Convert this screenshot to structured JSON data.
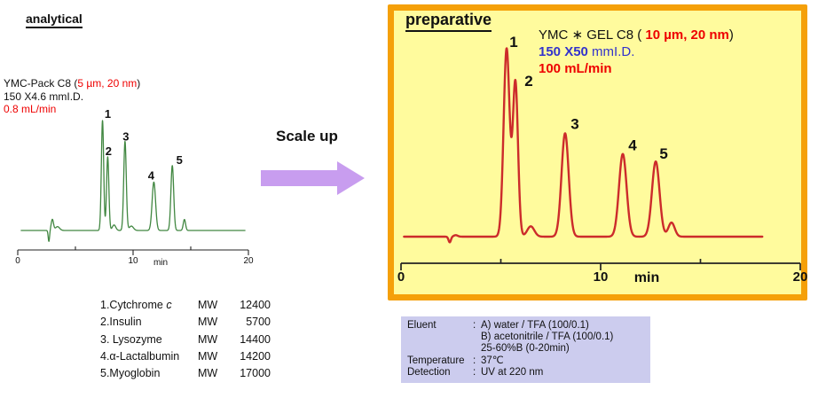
{
  "colors": {
    "panel_border": "#F5A009",
    "panel_bg": "#FFFB9D",
    "analytical_trace": "#418741",
    "preparative_trace": "#CC2B2B",
    "axis": "#222222",
    "arrow_fill": "#C89DEF",
    "red_text": "#EE0000",
    "blue_text": "#3333CC",
    "conditions_bg": "#CCCCEE"
  },
  "chart_data": [
    {
      "id": "analytical",
      "type": "line",
      "title": "analytical",
      "xlabel": "min",
      "xlim": [
        0,
        20
      ],
      "x_major_ticks": [
        0,
        10,
        20
      ],
      "x_minor_ticks": [
        5,
        15
      ],
      "grid": false,
      "trace_range": [
        0.3,
        19.7
      ],
      "line_color": "#418741",
      "peaks": [
        {
          "label": "1",
          "rt": 7.35,
          "rel_height": 1.0,
          "sigma": 0.1,
          "label_dx": 6,
          "label_dy": -3
        },
        {
          "label": "2",
          "rt": 7.8,
          "rel_height": 0.67,
          "sigma": 0.1,
          "label_dx": 1,
          "label_dy": -2
        },
        {
          "label": "3",
          "rt": 9.3,
          "rel_height": 0.81,
          "sigma": 0.11,
          "label_dx": 1,
          "label_dy": -1
        },
        {
          "label": "4",
          "rt": 11.8,
          "rel_height": 0.44,
          "sigma": 0.15,
          "label_dx": -3,
          "label_dy": -3
        },
        {
          "label": "5",
          "rt": 13.4,
          "rel_height": 0.59,
          "sigma": 0.12,
          "label_dx": 8,
          "label_dy": -2
        },
        {
          "label": "",
          "rt": 14.45,
          "rel_height": 0.1,
          "sigma": 0.1
        },
        {
          "label": "",
          "rt": 8.35,
          "rel_height": 0.05,
          "sigma": 0.15
        },
        {
          "label": "",
          "rt": 9.85,
          "rel_height": 0.04,
          "sigma": 0.18
        }
      ],
      "injection_disturbance": {
        "rt": 2.7,
        "depth": 0.1,
        "rebound": 0.1,
        "settle": 0.035
      }
    },
    {
      "id": "preparative",
      "type": "line",
      "title": "preparative",
      "xlabel": "min",
      "xlim": [
        0,
        20
      ],
      "x_major_ticks": [
        0,
        10,
        20
      ],
      "x_minor_ticks": [
        5,
        15
      ],
      "grid": false,
      "trace_range": [
        0.15,
        18.1
      ],
      "line_color": "#CC2B2B",
      "peaks": [
        {
          "label": "1",
          "rt": 5.29,
          "rel_height": 1.0,
          "sigma": 0.15,
          "label_dx": 8,
          "label_dy": -2
        },
        {
          "label": "2",
          "rt": 5.73,
          "rel_height": 0.82,
          "sigma": 0.13,
          "label_dx": 15,
          "label_dy": 4
        },
        {
          "label": "3",
          "rt": 8.22,
          "rel_height": 0.55,
          "sigma": 0.18,
          "label_dx": 11,
          "label_dy": -5
        },
        {
          "label": "4",
          "rt": 11.11,
          "rel_height": 0.44,
          "sigma": 0.19,
          "label_dx": 11,
          "label_dy": -4
        },
        {
          "label": "5",
          "rt": 12.76,
          "rel_height": 0.4,
          "sigma": 0.19,
          "label_dx": 9,
          "label_dy": -3
        },
        {
          "label": "",
          "rt": 6.5,
          "rel_height": 0.055,
          "sigma": 0.18
        },
        {
          "label": "",
          "rt": 13.55,
          "rel_height": 0.075,
          "sigma": 0.16
        }
      ],
      "injection_disturbance": {
        "rt": 2.44,
        "depth": 0.03,
        "rebound": 0.008,
        "settle": 0
      }
    }
  ],
  "left_panel": {
    "info_lines": [
      [
        {
          "t": "YMC-Pack C8 ("
        },
        {
          "t": "5 µm, 20 nm",
          "c": "red"
        },
        {
          "t": ")"
        }
      ],
      [
        {
          "t": "150 X4.6 mmI.D."
        }
      ],
      [
        {
          "t": "0.8 mL/min",
          "c": "red"
        }
      ]
    ]
  },
  "right_panel": {
    "info_lines": [
      [
        {
          "t": "YMC ∗ GEL C8 ( "
        },
        {
          "t": "10 µm, 20 nm",
          "c": "red",
          "b": true
        },
        {
          "t": ")"
        }
      ],
      [
        {
          "t": "150 X50",
          "c": "blue",
          "b": true
        },
        {
          "t": " mmI.D.",
          "c": "blue"
        }
      ],
      [
        {
          "t": "100 mL/min",
          "c": "red",
          "b": true
        }
      ]
    ]
  },
  "scale_up": {
    "label": "Scale up"
  },
  "compound_legend": {
    "rows": [
      {
        "name": "1.Cytchrome ",
        "italic": "c",
        "mw_label": "MW",
        "mw": "12400"
      },
      {
        "name": "2.Insulin",
        "italic": "",
        "mw_label": "MW",
        "mw": "5700"
      },
      {
        "name": "3. Lysozyme",
        "italic": "",
        "mw_label": "MW",
        "mw": "14400"
      },
      {
        "name": "4.α-Lactalbumin",
        "italic": "",
        "mw_label": "MW",
        "mw": "14200"
      },
      {
        "name": "5.Myoglobin",
        "italic": "",
        "mw_label": "MW",
        "mw": "17000"
      }
    ]
  },
  "conditions": {
    "rows": [
      {
        "label": "Eluent",
        "colon": ":",
        "lines": [
          "A) water / TFA (100/0.1)",
          "B) acetonitrile / TFA (100/0.1)",
          "25-60%B (0-20min)"
        ]
      },
      {
        "label": "Temperature",
        "colon": ":",
        "lines": [
          "37℃"
        ]
      },
      {
        "label": "Detection",
        "colon": ":",
        "lines": [
          "UV at 220 nm"
        ]
      }
    ]
  }
}
